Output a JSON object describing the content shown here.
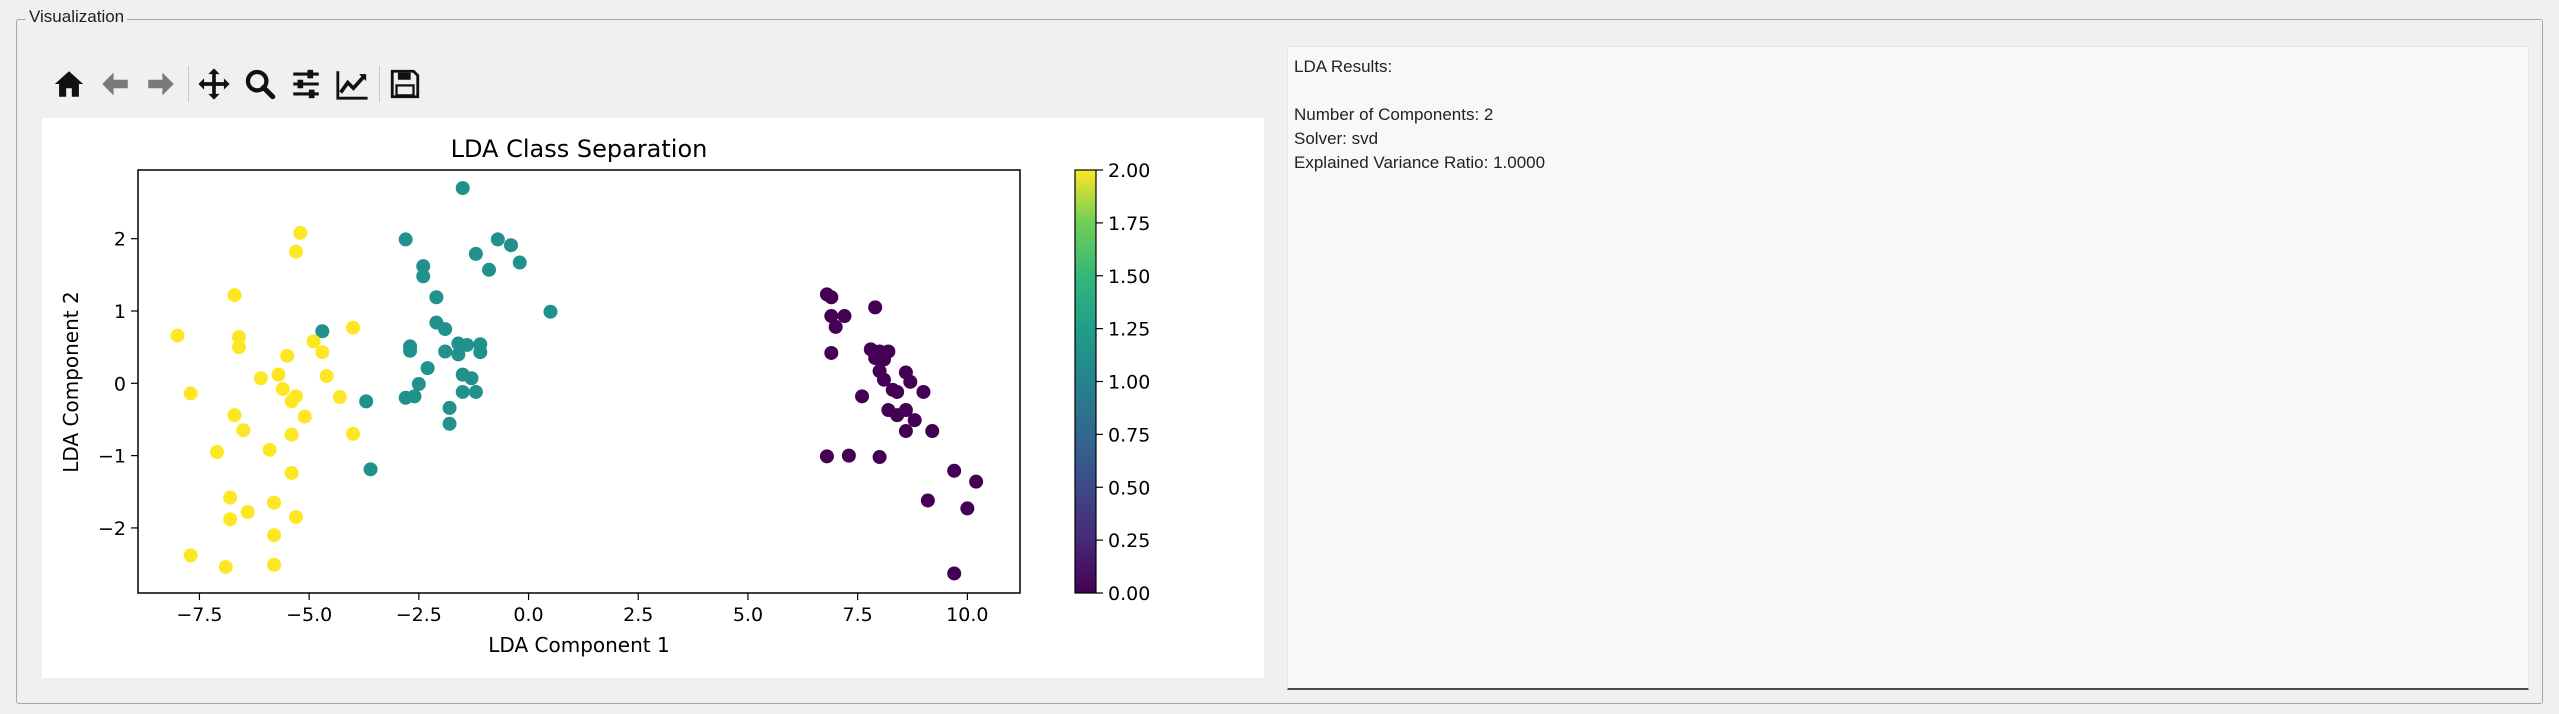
{
  "groupbox": {
    "title": "Visualization"
  },
  "toolbar": {
    "buttons": [
      {
        "name": "home-button",
        "icon": "home-icon"
      },
      {
        "name": "back-button",
        "icon": "arrow-left-icon"
      },
      {
        "name": "forward-button",
        "icon": "arrow-right-icon"
      },
      {
        "name": "pan-button",
        "icon": "move-icon"
      },
      {
        "name": "zoom-button",
        "icon": "magnifier-icon"
      },
      {
        "name": "configure-subplots-button",
        "icon": "sliders-icon"
      },
      {
        "name": "edit-axes-button",
        "icon": "line-chart-icon"
      },
      {
        "name": "save-figure-button",
        "icon": "floppy-disk-icon"
      }
    ]
  },
  "chart_data": {
    "type": "scatter",
    "title": "LDA Class Separation",
    "xlabel": "LDA Component 1",
    "ylabel": "LDA Component 2",
    "xlim": [
      -8.9,
      11.2
    ],
    "ylim": [
      -2.9,
      2.95
    ],
    "xticks": [
      "−7.5",
      "−5.0",
      "−2.5",
      "0.0",
      "2.5",
      "5.0",
      "7.5",
      "10.0"
    ],
    "xtick_values": [
      -7.5,
      -5.0,
      -2.5,
      0.0,
      2.5,
      5.0,
      7.5,
      10.0
    ],
    "yticks": [
      "−2",
      "−1",
      "0",
      "1",
      "2"
    ],
    "ytick_values": [
      -2,
      -1,
      0,
      1,
      2
    ],
    "grid": false,
    "colorbar": {
      "colormap": "viridis",
      "range": [
        0.0,
        2.0
      ],
      "ticks": [
        "0.00",
        "0.25",
        "0.50",
        "0.75",
        "1.00",
        "1.25",
        "1.50",
        "1.75",
        "2.00"
      ],
      "tick_values": [
        0.0,
        0.25,
        0.5,
        0.75,
        1.0,
        1.25,
        1.5,
        1.75,
        2.0
      ]
    },
    "class_colors": {
      "0": "#440154",
      "1": "#21918c",
      "2": "#fde725"
    },
    "series": [
      {
        "class": 0,
        "points": [
          [
            6.8,
            1.23
          ],
          [
            6.9,
            1.19
          ],
          [
            7.2,
            0.93
          ],
          [
            6.9,
            0.93
          ],
          [
            7.0,
            0.78
          ],
          [
            6.9,
            0.42
          ],
          [
            7.9,
            1.05
          ],
          [
            7.8,
            0.47
          ],
          [
            7.9,
            0.35
          ],
          [
            8.0,
            0.44
          ],
          [
            8.1,
            0.33
          ],
          [
            8.2,
            0.44
          ],
          [
            8.0,
            0.17
          ],
          [
            8.1,
            0.05
          ],
          [
            8.3,
            -0.09
          ],
          [
            8.4,
            -0.12
          ],
          [
            8.6,
            0.15
          ],
          [
            8.7,
            0.02
          ],
          [
            9.0,
            -0.12
          ],
          [
            7.6,
            -0.18
          ],
          [
            8.2,
            -0.37
          ],
          [
            8.4,
            -0.44
          ],
          [
            8.6,
            -0.37
          ],
          [
            8.8,
            -0.51
          ],
          [
            8.6,
            -0.66
          ],
          [
            9.2,
            -0.66
          ],
          [
            8.0,
            -1.02
          ],
          [
            7.3,
            -1.0
          ],
          [
            6.8,
            -1.01
          ],
          [
            9.7,
            -1.21
          ],
          [
            10.2,
            -1.36
          ],
          [
            9.1,
            -1.62
          ],
          [
            10.0,
            -1.73
          ],
          [
            9.7,
            -2.63
          ]
        ]
      },
      {
        "class": 1,
        "points": [
          [
            -1.5,
            2.7
          ],
          [
            -2.8,
            1.99
          ],
          [
            -2.4,
            1.62
          ],
          [
            -2.4,
            1.48
          ],
          [
            -1.2,
            1.79
          ],
          [
            -0.7,
            1.99
          ],
          [
            -0.4,
            1.91
          ],
          [
            -0.9,
            1.57
          ],
          [
            -0.2,
            1.67
          ],
          [
            -2.1,
            1.19
          ],
          [
            -2.1,
            0.84
          ],
          [
            -1.9,
            0.75
          ],
          [
            0.5,
            0.99
          ],
          [
            -4.7,
            0.72
          ],
          [
            -1.6,
            0.55
          ],
          [
            -1.4,
            0.53
          ],
          [
            -1.1,
            0.54
          ],
          [
            -1.1,
            0.43
          ],
          [
            -1.6,
            0.4
          ],
          [
            -2.7,
            0.51
          ],
          [
            -2.7,
            0.45
          ],
          [
            -2.3,
            0.21
          ],
          [
            -1.9,
            0.44
          ],
          [
            -1.5,
            0.12
          ],
          [
            -1.3,
            0.07
          ],
          [
            -2.5,
            -0.01
          ],
          [
            -1.5,
            -0.12
          ],
          [
            -1.2,
            -0.12
          ],
          [
            -2.6,
            -0.18
          ],
          [
            -2.8,
            -0.2
          ],
          [
            -3.7,
            -0.25
          ],
          [
            -1.8,
            -0.34
          ],
          [
            -1.8,
            -0.56
          ],
          [
            -3.6,
            -1.19
          ]
        ]
      },
      {
        "class": 2,
        "points": [
          [
            -5.2,
            2.08
          ],
          [
            -5.3,
            1.82
          ],
          [
            -6.7,
            1.22
          ],
          [
            -8.0,
            0.66
          ],
          [
            -6.6,
            0.64
          ],
          [
            -6.6,
            0.5
          ],
          [
            -4.0,
            0.77
          ],
          [
            -5.5,
            0.38
          ],
          [
            -4.9,
            0.58
          ],
          [
            -4.7,
            0.43
          ],
          [
            -6.1,
            0.07
          ],
          [
            -5.7,
            0.12
          ],
          [
            -5.6,
            -0.08
          ],
          [
            -4.6,
            0.1
          ],
          [
            -5.3,
            -0.18
          ],
          [
            -7.7,
            -0.14
          ],
          [
            -4.3,
            -0.19
          ],
          [
            -5.4,
            -0.25
          ],
          [
            -5.1,
            -0.46
          ],
          [
            -6.7,
            -0.44
          ],
          [
            -6.5,
            -0.65
          ],
          [
            -5.4,
            -0.71
          ],
          [
            -4.0,
            -0.7
          ],
          [
            -7.1,
            -0.95
          ],
          [
            -5.9,
            -0.92
          ],
          [
            -5.4,
            -1.24
          ],
          [
            -6.8,
            -1.58
          ],
          [
            -5.8,
            -1.65
          ],
          [
            -6.4,
            -1.78
          ],
          [
            -6.8,
            -1.88
          ],
          [
            -5.3,
            -1.85
          ],
          [
            -5.8,
            -2.1
          ],
          [
            -7.7,
            -2.38
          ],
          [
            -6.9,
            -2.54
          ],
          [
            -5.8,
            -2.51
          ]
        ]
      }
    ]
  },
  "results": {
    "lines": [
      "LDA Results:",
      "",
      "Number of Components: 2",
      "Solver: svd",
      "Explained Variance Ratio: 1.0000"
    ]
  }
}
